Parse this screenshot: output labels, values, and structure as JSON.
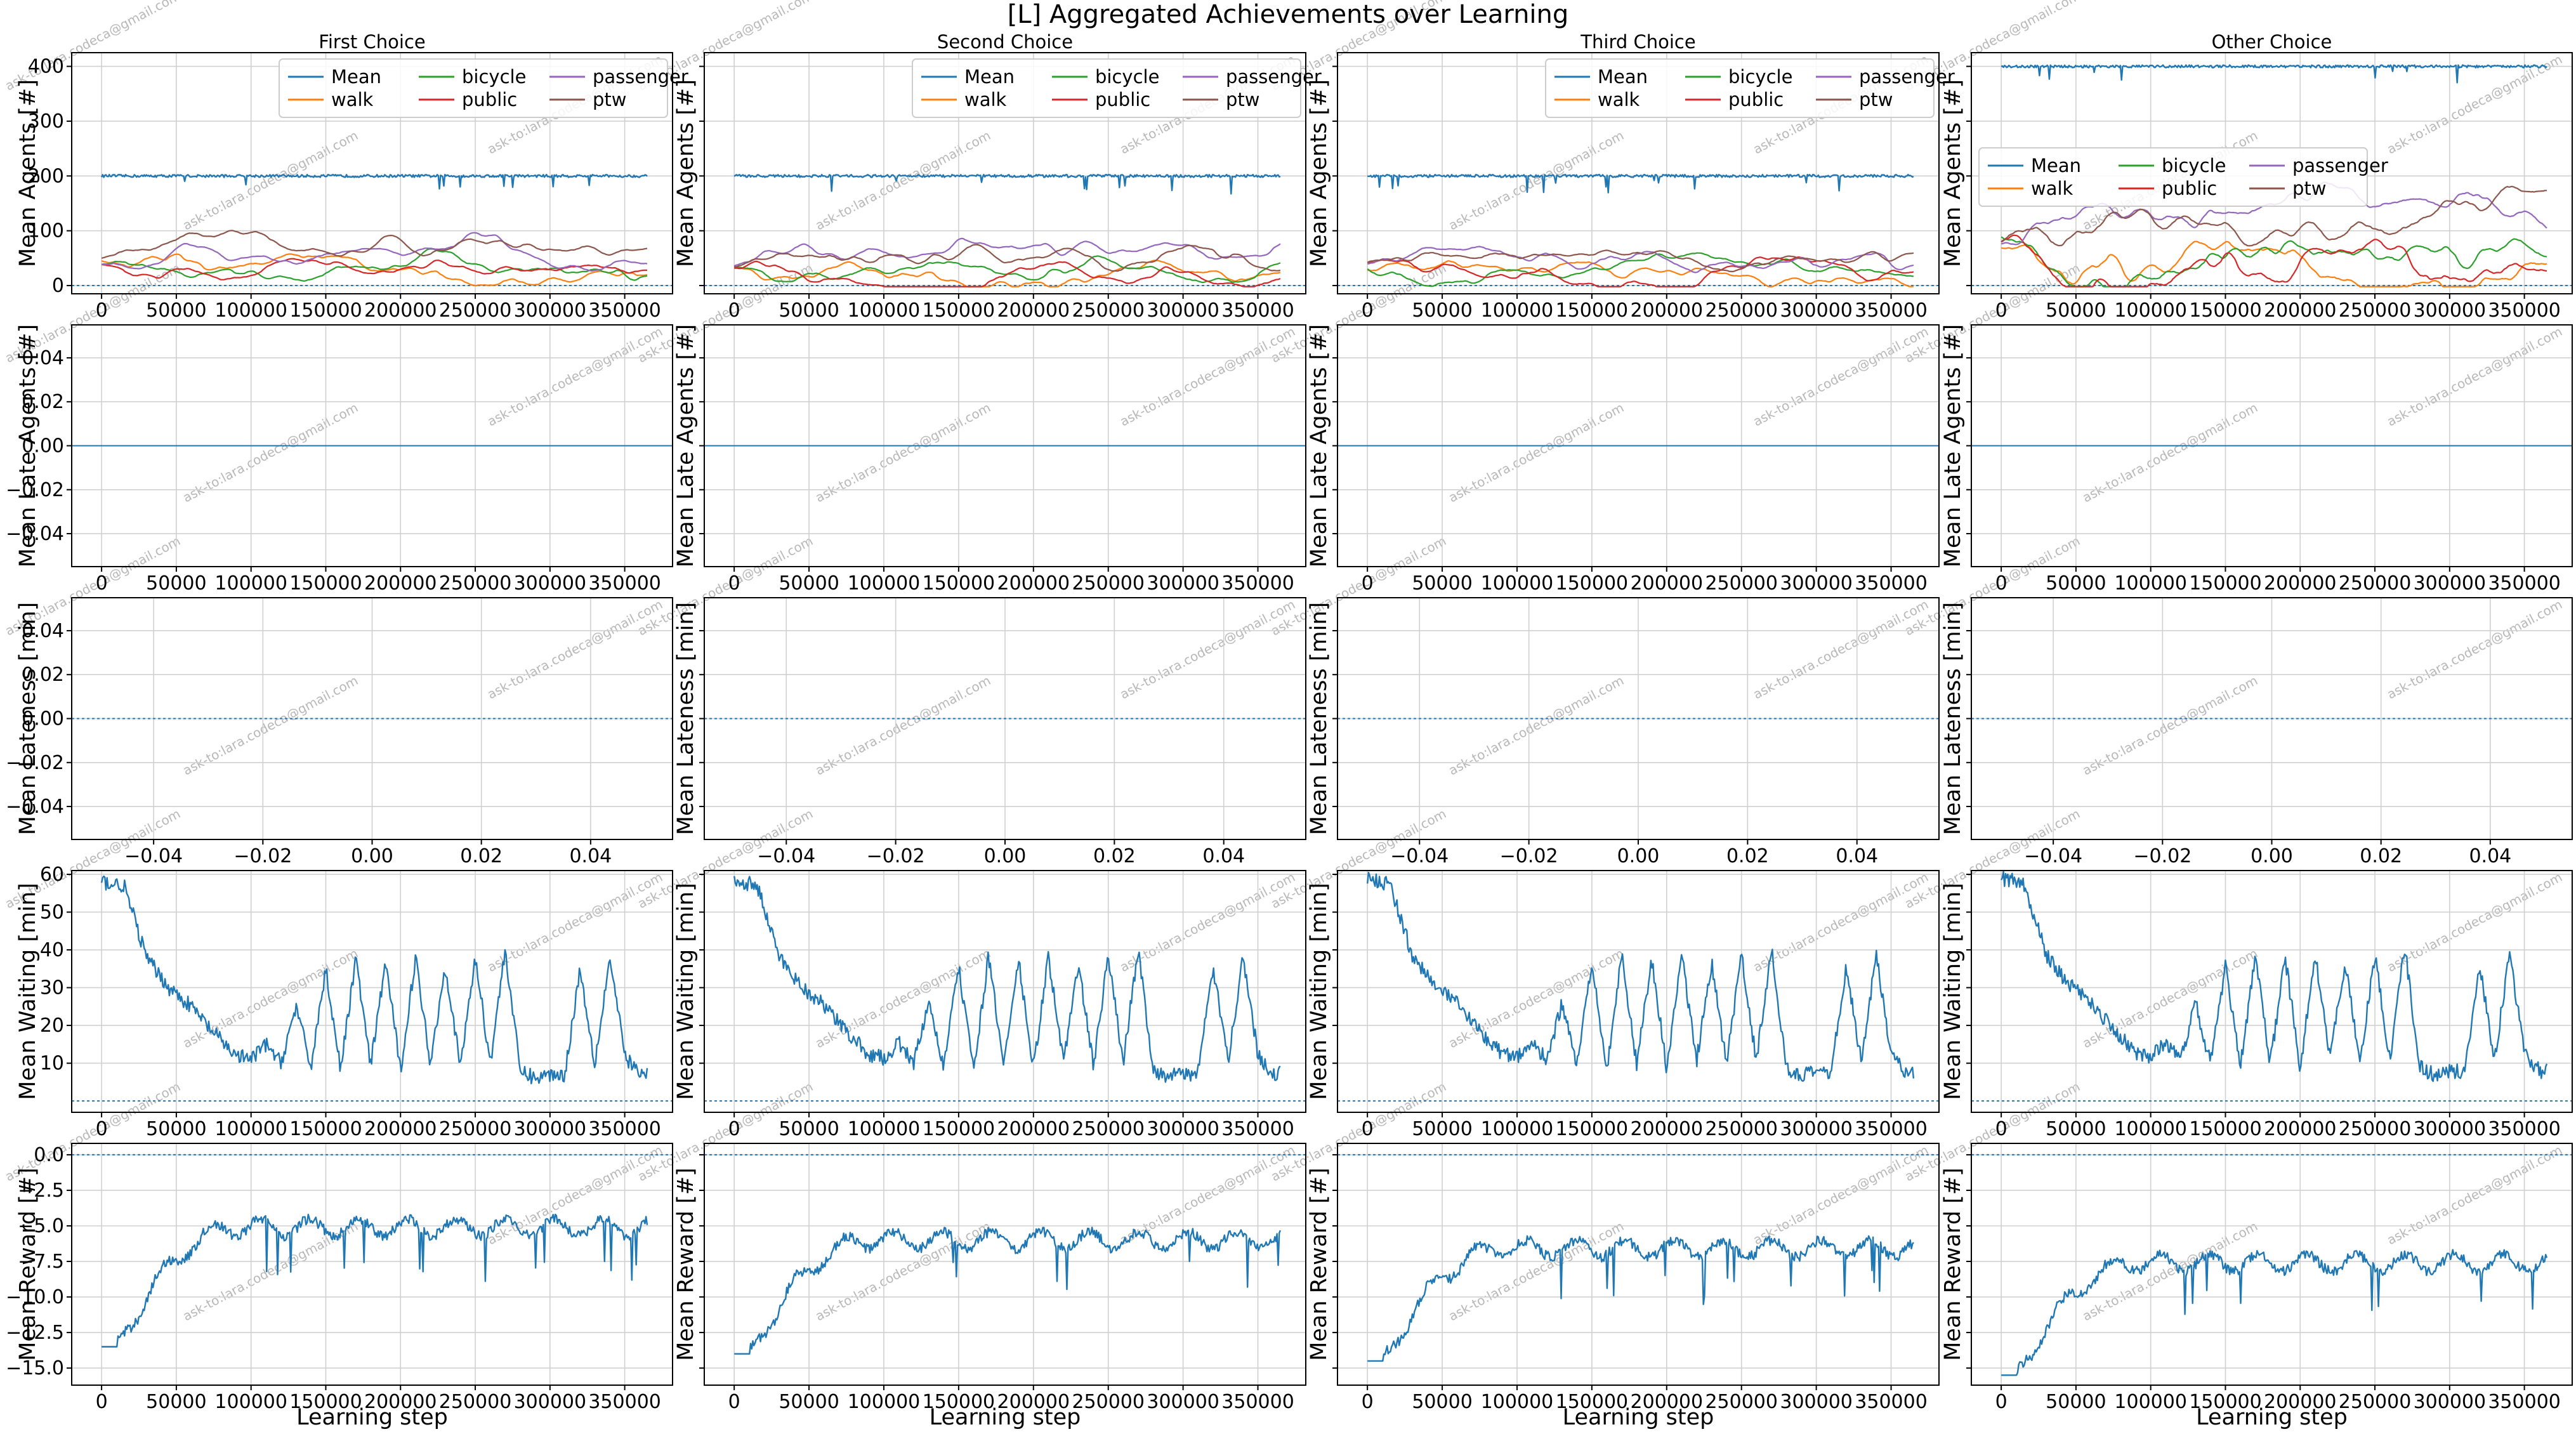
{
  "figure_title": "[L] Aggregated Achievements over Learning",
  "watermark": "ask-to:lara.codeca@gmail.com",
  "colors": {
    "Mean": "#1f77b4",
    "walk": "#ff7f0e",
    "bicycle": "#2ca02c",
    "public": "#d62728",
    "passenger": "#9467bd",
    "ptw": "#8c564b"
  },
  "columns": [
    "First Choice",
    "Second Choice",
    "Third Choice",
    "Other Choice"
  ],
  "xlabel": "Learning step",
  "rows": [
    {
      "ylabel": "Mean Agents [#]",
      "ylim": [
        -15,
        425
      ],
      "yticks": [
        "0",
        "100",
        "200",
        "300",
        "400"
      ],
      "ytick_values": [
        0,
        100,
        200,
        300,
        400
      ],
      "xlim": [
        -20000,
        382000
      ],
      "xticks": [
        "0",
        "50000",
        "100000",
        "150000",
        "200000",
        "250000",
        "300000",
        "350000"
      ],
      "xtick_values": [
        0,
        50000,
        100000,
        150000,
        200000,
        250000,
        300000,
        350000
      ],
      "legend": [
        "Mean",
        "walk",
        "bicycle",
        "public",
        "passenger",
        "ptw"
      ]
    },
    {
      "ylabel": "Mean Late Agents [#]",
      "ylim": [
        -0.055,
        0.055
      ],
      "yticks": [
        "0.04",
        "0.02",
        "0.00",
        "−0.02",
        "−0.04"
      ],
      "ytick_values": [
        0.04,
        0.02,
        0.0,
        -0.02,
        -0.04
      ],
      "xlim": [
        -20000,
        382000
      ],
      "xticks": [
        "0",
        "50000",
        "100000",
        "150000",
        "200000",
        "250000",
        "300000",
        "350000"
      ],
      "xtick_values": [
        0,
        50000,
        100000,
        150000,
        200000,
        250000,
        300000,
        350000
      ]
    },
    {
      "ylabel": "Mean Lateness [min]",
      "ylim": [
        -0.055,
        0.055
      ],
      "yticks": [
        "0.04",
        "0.02",
        "0.00",
        "−0.02",
        "−0.04"
      ],
      "ytick_values": [
        0.04,
        0.02,
        0.0,
        -0.02,
        -0.04
      ],
      "xlim": [
        -0.055,
        0.055
      ],
      "xticks": [
        "−0.04",
        "−0.02",
        "0.00",
        "0.02",
        "0.04"
      ],
      "xtick_values": [
        -0.04,
        -0.02,
        0.0,
        0.02,
        0.04
      ]
    },
    {
      "ylabel": "Mean Waiting [min]",
      "ylim": [
        -3,
        61
      ],
      "yticks": [
        "10",
        "20",
        "30",
        "40",
        "50",
        "60"
      ],
      "ytick_values": [
        10,
        20,
        30,
        40,
        50,
        60
      ],
      "xlim": [
        -20000,
        382000
      ],
      "xticks": [
        "0",
        "50000",
        "100000",
        "150000",
        "200000",
        "250000",
        "300000",
        "350000"
      ],
      "xtick_values": [
        0,
        50000,
        100000,
        150000,
        200000,
        250000,
        300000,
        350000
      ]
    },
    {
      "ylabel": "Mean Reward [#]",
      "ylim": [
        -16.2,
        0.8
      ],
      "yticks": [
        "0.0",
        "−2.5",
        "−5.0",
        "−7.5",
        "−10.0",
        "−12.5",
        "−15.0"
      ],
      "ytick_values": [
        0.0,
        -2.5,
        -5.0,
        -7.5,
        -10.0,
        -12.5,
        -15.0
      ],
      "xlim": [
        -20000,
        382000
      ],
      "xticks": [
        "0",
        "50000",
        "100000",
        "150000",
        "200000",
        "250000",
        "300000",
        "350000"
      ],
      "xtick_values": [
        0,
        50000,
        100000,
        150000,
        200000,
        250000,
        300000,
        350000
      ]
    }
  ],
  "chart_data": {
    "type": "line",
    "title": "[L] Aggregated Achievements over Learning",
    "grid": true,
    "x_range": [
      0,
      365000
    ],
    "agents_mean_level": [
      200,
      200,
      200,
      400
    ],
    "agents_mode_level_estimates": {
      "First Choice": {
        "walk": 20,
        "bicycle": 25,
        "public": 30,
        "passenger": 50,
        "ptw": 60
      },
      "Second Choice": {
        "walk": 25,
        "bicycle": 25,
        "public": 20,
        "passenger": 50,
        "ptw": 60
      },
      "Third Choice": {
        "walk": 25,
        "bicycle": 20,
        "public": 20,
        "passenger": 50,
        "ptw": 60
      },
      "Other Choice": {
        "walk": 50,
        "bicycle": 40,
        "public": 40,
        "passenger": 110,
        "ptw": 130
      }
    },
    "late_agents": 0.0,
    "lateness": 0.0,
    "waiting_series": {
      "x": [
        0,
        15000,
        30000,
        45000,
        60000,
        75000,
        90000,
        100000,
        110000,
        120000,
        130000,
        140000,
        150000,
        160000,
        170000,
        180000,
        190000,
        200000,
        210000,
        220000,
        230000,
        240000,
        250000,
        260000,
        270000,
        280000,
        290000,
        300000,
        310000,
        320000,
        330000,
        340000,
        350000,
        360000
      ],
      "y": [
        58,
        57,
        38,
        30,
        25,
        18,
        12,
        11,
        15,
        10,
        25,
        9,
        35,
        8,
        38,
        9,
        37,
        8,
        38,
        10,
        36,
        9,
        38,
        10,
        40,
        8,
        6,
        7,
        7,
        35,
        10,
        38,
        12,
        7
      ]
    },
    "reward_series": {
      "First Choice": {
        "start": -13.5,
        "end": -4.5
      },
      "Second Choice": {
        "start": -14.0,
        "end": -5.4
      },
      "Third Choice": {
        "start": -14.5,
        "end": -6.0
      },
      "Other Choice": {
        "start": -15.5,
        "end": -7.0
      }
    }
  }
}
